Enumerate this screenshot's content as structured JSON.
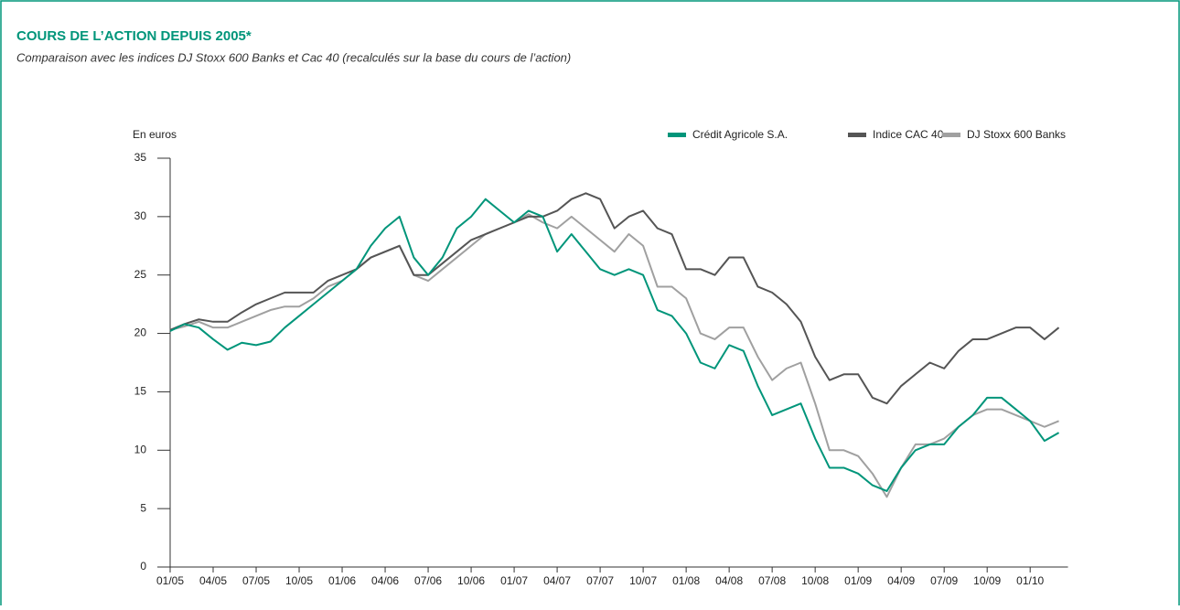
{
  "chart_data": {
    "type": "line",
    "title": "COURS DE L’ACTION DEPUIS 2005*",
    "subtitle": "Comparaison avec les indices DJ Stoxx 600 Banks et Cac 40 (recalculés sur la base du cours de l’action)",
    "y_label": "En euros",
    "categories": [
      "01/05",
      null,
      null,
      "04/05",
      null,
      null,
      "07/05",
      null,
      null,
      "10/05",
      null,
      null,
      "01/06",
      null,
      null,
      "04/06",
      null,
      null,
      "07/06",
      null,
      null,
      "10/06",
      null,
      null,
      "01/07",
      null,
      null,
      "04/07",
      null,
      null,
      "07/07",
      null,
      null,
      "10/07",
      null,
      null,
      "01/08",
      null,
      null,
      "04/08",
      null,
      null,
      "07/08",
      null,
      null,
      "10/08",
      null,
      null,
      "01/09",
      null,
      null,
      "04/09",
      null,
      null,
      "07/09",
      null,
      null,
      "10/09",
      null,
      null,
      "01/10",
      null,
      null
    ],
    "series": [
      {
        "name": "Crédit Agricole S.A.",
        "color": "#00957a",
        "values": [
          20.2,
          20.8,
          20.5,
          19.5,
          18.6,
          19.2,
          19.0,
          19.3,
          20.5,
          21.5,
          22.5,
          23.5,
          24.5,
          25.5,
          27.5,
          29,
          30,
          26.5,
          25,
          26.5,
          29,
          30,
          31.5,
          30.5,
          29.5,
          30.5,
          30,
          27,
          28.5,
          27,
          25.5,
          25,
          25.5,
          25,
          22,
          21.5,
          20,
          17.5,
          17,
          19,
          18.5,
          15.5,
          13,
          13.5,
          14,
          11,
          8.5,
          8.5,
          8,
          7,
          6.5,
          8.5,
          10,
          10.5,
          10.5,
          12,
          13,
          14.5,
          14.5,
          13.5,
          12.5,
          10.8,
          11.5
        ]
      },
      {
        "name": "Indice CAC 40",
        "color": "#555555",
        "values": [
          20.3,
          20.8,
          21.2,
          21,
          21,
          21.8,
          22.5,
          23,
          23.5,
          23.5,
          23.5,
          24.5,
          25,
          25.5,
          26.5,
          27,
          27.5,
          25,
          25,
          26,
          27,
          28,
          28.5,
          29,
          29.5,
          30,
          30,
          30.5,
          31.5,
          32,
          31.5,
          29,
          30,
          30.5,
          29,
          28.5,
          25.5,
          25.5,
          25,
          26.5,
          26.5,
          24,
          23.5,
          22.5,
          21,
          18,
          16,
          16.5,
          16.5,
          14.5,
          14,
          15.5,
          16.5,
          17.5,
          17,
          18.5,
          19.5,
          19.5,
          20,
          20.5,
          20.5,
          19.5,
          20.5
        ]
      },
      {
        "name": "DJ Stoxx 600 Banks",
        "color": "#a0a0a0",
        "values": [
          20.3,
          20.6,
          21,
          20.5,
          20.5,
          21,
          21.5,
          22,
          22.3,
          22.3,
          23,
          24,
          24.5,
          25.5,
          26.5,
          27,
          27.5,
          25,
          24.5,
          25.5,
          26.5,
          27.5,
          28.5,
          29,
          29.5,
          30.2,
          29.5,
          29,
          30,
          29,
          28,
          27,
          28.5,
          27.5,
          24,
          24,
          23,
          20,
          19.5,
          20.5,
          20.5,
          18,
          16,
          17,
          17.5,
          14,
          10,
          10,
          9.5,
          8,
          6,
          8.5,
          10.5,
          10.5,
          11,
          12,
          13,
          13.5,
          13.5,
          13,
          12.5,
          12,
          12.5
        ]
      }
    ],
    "ylim": [
      0,
      35
    ],
    "yticks": [
      0,
      5,
      10,
      15,
      20,
      25,
      30,
      35
    ]
  }
}
